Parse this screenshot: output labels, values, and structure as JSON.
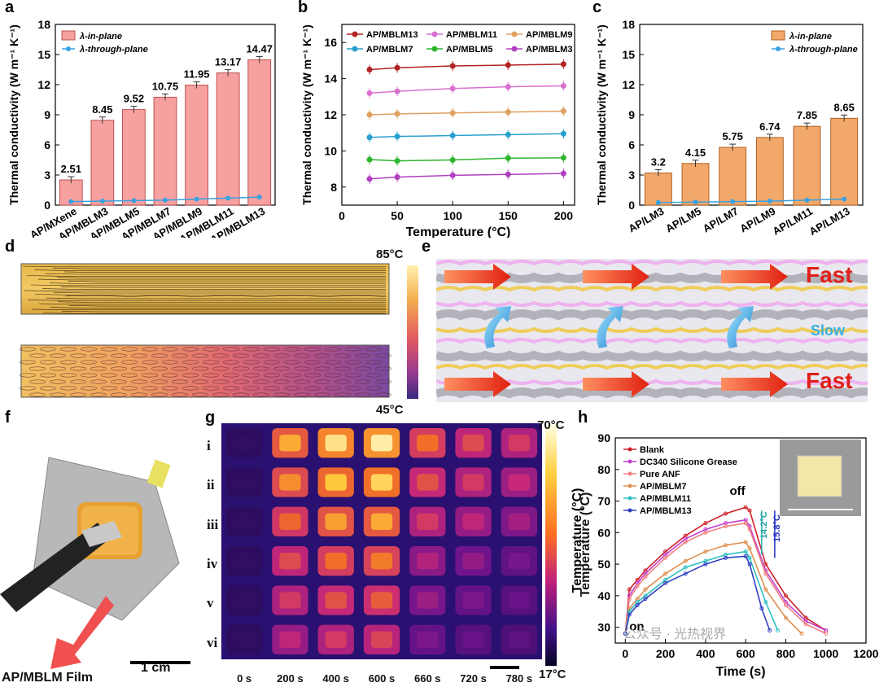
{
  "panels": [
    "a",
    "b",
    "c",
    "d",
    "e",
    "f",
    "g",
    "h"
  ],
  "chart_data": [
    {
      "type": "bar",
      "id": "a",
      "ylabel": "Thermal conductivity (W m⁻¹ K⁻¹)",
      "ylim": [
        0,
        18
      ],
      "yticks": [
        0,
        3,
        6,
        9,
        12,
        15,
        18
      ],
      "categories": [
        "AP/MXene",
        "AP/MBLM3",
        "AP/MBLM5",
        "AP/MBLM7",
        "AP/MBLM9",
        "AP/MBLM11",
        "AP/MBLM13"
      ],
      "series": [
        {
          "name": "λ-in-plane",
          "values": [
            2.51,
            8.45,
            9.52,
            10.75,
            11.95,
            13.17,
            14.47
          ],
          "labels": [
            "2.51",
            "8.45",
            "9.52",
            "10.75",
            "11.95",
            "13.17",
            "14.47"
          ]
        },
        {
          "name": "λ-through-plane",
          "values": [
            0.35,
            0.4,
            0.45,
            0.5,
            0.6,
            0.7,
            0.8
          ]
        }
      ],
      "legend": "top-left"
    },
    {
      "type": "line",
      "id": "b",
      "xlabel": "Temperature (°C)",
      "ylabel": "Thermal conductivity (W m⁻¹ K⁻¹)",
      "xlim": [
        0,
        210
      ],
      "ylim": [
        7,
        17
      ],
      "xticks": [
        0,
        50,
        100,
        150,
        200
      ],
      "yticks": [
        8,
        10,
        12,
        14,
        16
      ],
      "x": [
        25,
        50,
        100,
        150,
        200
      ],
      "series": [
        {
          "name": "AP/MBLM13",
          "color": "#b22222",
          "values": [
            14.5,
            14.6,
            14.7,
            14.75,
            14.8
          ]
        },
        {
          "name": "AP/MBLM11",
          "color": "#d970d0",
          "values": [
            13.2,
            13.3,
            13.45,
            13.55,
            13.6
          ]
        },
        {
          "name": "AP/MBLM9",
          "color": "#e0a060",
          "values": [
            12.0,
            12.05,
            12.1,
            12.15,
            12.2
          ]
        },
        {
          "name": "AP/MBLM7",
          "color": "#2aa0d0",
          "values": [
            10.75,
            10.8,
            10.85,
            10.9,
            10.95
          ]
        },
        {
          "name": "AP/MBLM5",
          "color": "#2db52d",
          "values": [
            9.52,
            9.45,
            9.5,
            9.6,
            9.62
          ]
        },
        {
          "name": "AP/MBLM3",
          "color": "#b040c0",
          "values": [
            8.45,
            8.55,
            8.65,
            8.7,
            8.75
          ]
        }
      ]
    },
    {
      "type": "bar",
      "id": "c",
      "ylabel": "Thermal conductivity (W m⁻¹ K⁻¹)",
      "ylim": [
        0,
        18
      ],
      "yticks": [
        0,
        3,
        6,
        9,
        12,
        15,
        18
      ],
      "categories": [
        "AP/LM3",
        "AP/LM5",
        "AP/LM7",
        "AP/LM9",
        "AP/LM11",
        "AP/LM13"
      ],
      "series": [
        {
          "name": "λ-in-plane",
          "values": [
            3.2,
            4.15,
            5.75,
            6.74,
            7.85,
            8.65
          ],
          "labels": [
            "3.2",
            "4.15",
            "5.75",
            "6.74",
            "7.85",
            "8.65"
          ]
        },
        {
          "name": "λ-through-plane",
          "values": [
            0.25,
            0.3,
            0.35,
            0.4,
            0.5,
            0.6
          ]
        }
      ],
      "legend": "top-right"
    },
    {
      "type": "line",
      "id": "h",
      "xlabel": "Time (s)",
      "ylabel": "Temperature (°C)",
      "xlim": [
        -50,
        1200
      ],
      "ylim": [
        25,
        90
      ],
      "xticks": [
        0,
        200,
        400,
        600,
        800,
        1000,
        1200
      ],
      "yticks": [
        30,
        40,
        50,
        60,
        70,
        80,
        90
      ],
      "series": [
        {
          "name": "Blank",
          "color": "#d0202a",
          "x": [
            0,
            20,
            60,
            100,
            200,
            300,
            400,
            500,
            600,
            620,
            700,
            800,
            900,
            1000
          ],
          "y": [
            28,
            42,
            45,
            48,
            54,
            59,
            63,
            66,
            68,
            67,
            50,
            40,
            33,
            29
          ]
        },
        {
          "name": "DC340 Silicone Grease",
          "color": "#c040d0",
          "x": [
            0,
            20,
            60,
            100,
            200,
            300,
            400,
            500,
            600,
            620,
            700,
            800,
            900,
            1000
          ],
          "y": [
            28,
            40,
            44,
            47,
            53,
            58,
            61,
            63,
            64,
            62,
            48,
            38,
            32,
            29
          ]
        },
        {
          "name": "Pure ANF",
          "color": "#f08080",
          "x": [
            0,
            20,
            60,
            100,
            200,
            300,
            400,
            500,
            600,
            620,
            700,
            800,
            900,
            1000
          ],
          "y": [
            28,
            39,
            43,
            46,
            52,
            57,
            60,
            62,
            63,
            61,
            47,
            37,
            31,
            28
          ]
        },
        {
          "name": "AP/MBLM7",
          "color": "#e09050",
          "x": [
            0,
            20,
            60,
            100,
            200,
            300,
            400,
            500,
            600,
            620,
            700,
            800,
            880
          ],
          "y": [
            28,
            36,
            39,
            42,
            47,
            51,
            54,
            56,
            57,
            55,
            42,
            33,
            28
          ]
        },
        {
          "name": "AP/MBLM11",
          "color": "#30c0c0",
          "x": [
            0,
            20,
            60,
            100,
            200,
            300,
            400,
            500,
            600,
            620,
            700,
            760
          ],
          "y": [
            28,
            35,
            38,
            40,
            45,
            49,
            51,
            53,
            54,
            52,
            38,
            29
          ]
        },
        {
          "name": "AP/MBLM13",
          "color": "#3040c0",
          "x": [
            0,
            20,
            60,
            100,
            200,
            300,
            400,
            500,
            600,
            620,
            680,
            720
          ],
          "y": [
            28,
            34,
            37,
            39,
            44,
            47,
            50,
            52,
            52.5,
            50,
            36,
            29
          ]
        }
      ],
      "annotations": [
        "off",
        "on",
        "14.2°C",
        "15.8°C"
      ]
    }
  ],
  "panel_d": {
    "scale_max": "85°C",
    "scale_min": "45°C"
  },
  "panel_e": {
    "label_top": "Fast",
    "label_mid": "Slow",
    "label_bot": "Fast"
  },
  "panel_f": {
    "film_label": "AP/MBLM Film",
    "scale_label": "1 cm"
  },
  "panel_g": {
    "rows": [
      "i",
      "ii",
      "iii",
      "iv",
      "v",
      "vi"
    ],
    "cols": [
      "0 s",
      "200 s",
      "400 s",
      "600 s",
      "660 s",
      "720 s",
      "780 s"
    ],
    "scale_max": "70°C",
    "scale_min": "17°C",
    "scale_title": "Temperature (°C)",
    "levels": [
      [
        0.1,
        0.8,
        0.92,
        0.95,
        0.7,
        0.6,
        0.55
      ],
      [
        0.1,
        0.75,
        0.85,
        0.88,
        0.62,
        0.55,
        0.5
      ],
      [
        0.1,
        0.68,
        0.78,
        0.8,
        0.55,
        0.48,
        0.42
      ],
      [
        0.1,
        0.6,
        0.7,
        0.72,
        0.45,
        0.38,
        0.32
      ],
      [
        0.1,
        0.55,
        0.62,
        0.65,
        0.4,
        0.33,
        0.28
      ],
      [
        0.1,
        0.48,
        0.55,
        0.58,
        0.33,
        0.28,
        0.24
      ]
    ]
  },
  "watermark": "公众号 · 光热视界"
}
